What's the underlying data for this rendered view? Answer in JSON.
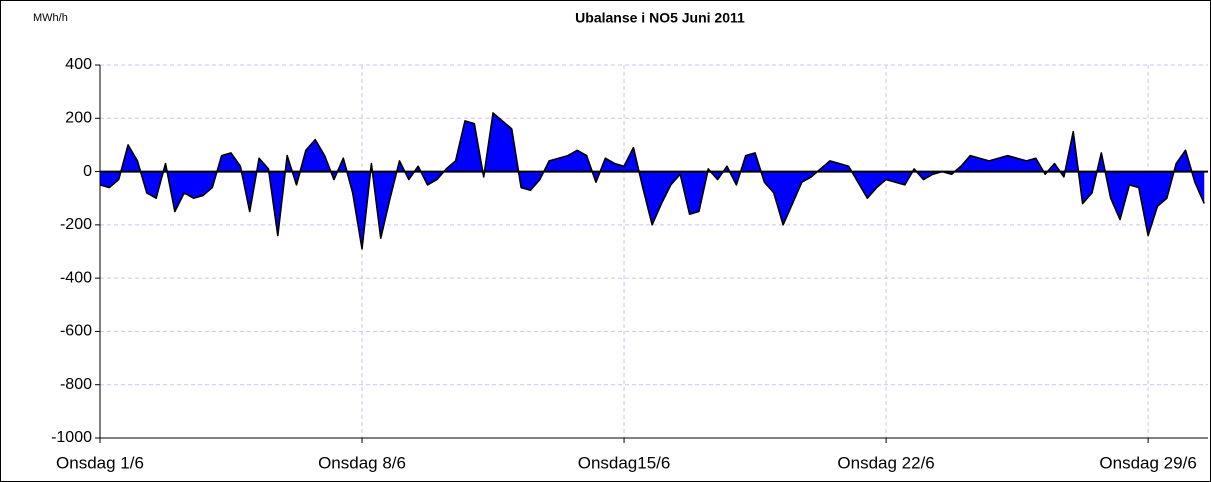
{
  "chart_data": {
    "type": "area",
    "title": "Ubalanse i NO5 Juni 2011",
    "y_label": "MWh/h",
    "color": "#0000ff",
    "line_color": "#000000",
    "grid": true,
    "xlim": [
      0,
      29.6
    ],
    "ylim": [
      -1000,
      400
    ],
    "yticks": [
      400,
      200,
      0,
      -200,
      -400,
      -600,
      -800,
      -1000
    ],
    "xticks": [
      {
        "value": 0,
        "label": "Onsdag 1/6"
      },
      {
        "value": 7,
        "label": "Onsdag 8/6"
      },
      {
        "value": 14,
        "label": "Onsdag15/6"
      },
      {
        "value": 21,
        "label": "Onsdag 22/6"
      },
      {
        "value": 28,
        "label": "Onsdag 29/6"
      }
    ],
    "x": [
      0,
      0.25,
      0.5,
      0.75,
      1,
      1.25,
      1.5,
      1.75,
      2,
      2.25,
      2.5,
      2.75,
      3,
      3.25,
      3.5,
      3.75,
      4,
      4.25,
      4.5,
      4.75,
      5,
      5.25,
      5.5,
      5.75,
      6,
      6.25,
      6.5,
      6.75,
      7,
      7.25,
      7.5,
      7.75,
      8,
      8.25,
      8.5,
      8.75,
      9,
      9.25,
      9.5,
      9.75,
      10,
      10.25,
      10.5,
      10.75,
      11,
      11.25,
      11.5,
      11.75,
      12,
      12.25,
      12.5,
      12.75,
      13,
      13.25,
      13.5,
      13.75,
      14,
      14.25,
      14.5,
      14.75,
      15,
      15.25,
      15.5,
      15.75,
      16,
      16.25,
      16.5,
      16.75,
      17,
      17.25,
      17.5,
      17.75,
      18,
      18.25,
      18.5,
      18.75,
      19,
      19.25,
      19.5,
      19.75,
      20,
      20.25,
      20.5,
      20.75,
      21,
      21.25,
      21.5,
      21.75,
      22,
      22.25,
      22.5,
      22.75,
      23,
      23.25,
      23.5,
      23.75,
      24,
      24.25,
      24.5,
      24.75,
      25,
      25.25,
      25.5,
      25.75,
      26,
      26.25,
      26.5,
      26.75,
      27,
      27.25,
      27.5,
      27.75,
      28,
      28.25,
      28.5,
      28.75,
      29,
      29.25,
      29.5
    ],
    "values": [
      -50,
      -60,
      -30,
      100,
      40,
      -80,
      -100,
      30,
      -150,
      -80,
      -100,
      -90,
      -60,
      60,
      70,
      20,
      -150,
      50,
      10,
      -240,
      60,
      -50,
      80,
      120,
      60,
      -30,
      50,
      -80,
      -290,
      30,
      -250,
      -100,
      40,
      -30,
      20,
      -50,
      -30,
      10,
      40,
      190,
      180,
      -20,
      220,
      190,
      160,
      -60,
      -70,
      -30,
      40,
      50,
      60,
      80,
      60,
      -40,
      50,
      30,
      20,
      90,
      -60,
      -200,
      -120,
      -50,
      -10,
      -160,
      -150,
      10,
      -30,
      20,
      -50,
      60,
      70,
      -40,
      -80,
      -200,
      -120,
      -40,
      -20,
      10,
      40,
      30,
      20,
      -40,
      -100,
      -60,
      -30,
      -40,
      -50,
      10,
      -30,
      -10,
      0,
      -10,
      20,
      60,
      50,
      40,
      50,
      60,
      50,
      40,
      50,
      -10,
      30,
      -20,
      150,
      -120,
      -80,
      70,
      -100,
      -180,
      -50,
      -60,
      -240,
      -130,
      -100,
      30,
      80,
      -40,
      -120
    ]
  }
}
